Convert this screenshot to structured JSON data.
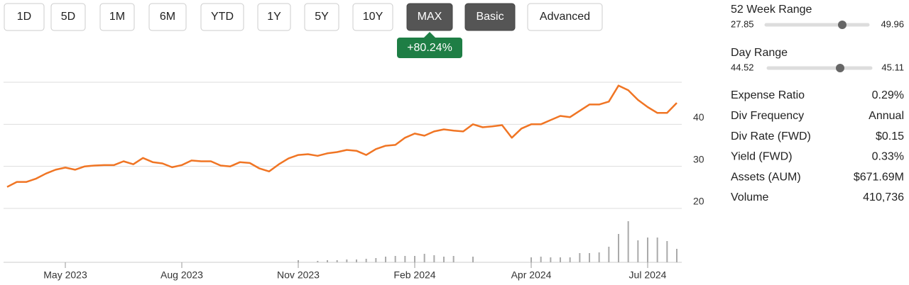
{
  "buttons": [
    {
      "label": "1D",
      "active": false
    },
    {
      "label": "5D",
      "active": false
    },
    {
      "label": "1M",
      "active": false
    },
    {
      "label": "6M",
      "active": false
    },
    {
      "label": "YTD",
      "active": false
    },
    {
      "label": "1Y",
      "active": false
    },
    {
      "label": "5Y",
      "active": false
    },
    {
      "label": "10Y",
      "active": false
    },
    {
      "label": "MAX",
      "active": true
    },
    {
      "label": "Basic",
      "active": true
    },
    {
      "label": "Advanced",
      "active": false
    }
  ],
  "badge": "+80.24%",
  "chart_data": {
    "type": "line",
    "x": [
      0,
      1,
      2,
      3,
      4,
      5,
      6,
      7,
      8,
      9,
      10,
      11,
      12,
      13,
      14,
      15,
      16,
      17,
      18,
      19,
      20,
      21,
      22,
      23,
      24,
      25,
      26,
      27,
      28,
      29,
      30,
      31,
      32,
      33,
      34,
      35,
      36,
      37,
      38,
      39,
      40,
      41,
      42,
      43,
      44,
      45,
      46,
      47,
      48,
      49,
      50,
      51,
      52,
      53,
      54,
      55,
      56,
      57,
      58,
      59,
      60,
      61,
      62,
      63,
      64,
      65,
      66,
      67,
      68,
      69
    ],
    "series": [
      {
        "name": "Price",
        "color": "#f07524",
        "values": [
          25.1,
          26.3,
          26.3,
          27.1,
          28.3,
          29.2,
          29.7,
          29.2,
          30.0,
          30.2,
          30.3,
          30.3,
          31.2,
          30.5,
          32.0,
          31.0,
          30.7,
          29.8,
          30.3,
          31.4,
          31.2,
          31.2,
          30.2,
          30.0,
          31.0,
          30.8,
          29.5,
          28.8,
          30.5,
          31.9,
          32.7,
          32.9,
          32.5,
          33.1,
          33.4,
          33.9,
          33.7,
          32.7,
          34.1,
          34.9,
          35.1,
          36.8,
          37.8,
          37.3,
          38.3,
          38.8,
          38.5,
          38.3,
          40.0,
          39.3,
          39.5,
          39.8,
          36.8,
          39.0,
          40.0,
          40.0,
          41.0,
          42.0,
          41.7,
          43.2,
          44.7,
          44.7,
          45.4,
          49.2,
          48.1,
          45.8,
          44.1,
          42.7,
          42.7,
          45.1
        ]
      },
      {
        "name": "Volume",
        "color": "#aaaaaa",
        "axis": "y2",
        "values": [
          null,
          null,
          null,
          null,
          null,
          null,
          null,
          null,
          null,
          null,
          null,
          null,
          null,
          null,
          null,
          null,
          null,
          null,
          null,
          null,
          null,
          null,
          null,
          null,
          null,
          null,
          null,
          null,
          null,
          null,
          3,
          null,
          2,
          3,
          3,
          4,
          4,
          5,
          6,
          8,
          9,
          9,
          9,
          12,
          10,
          8,
          9,
          null,
          8,
          null,
          null,
          null,
          null,
          null,
          7,
          8,
          7,
          7,
          7,
          13,
          13,
          14,
          22,
          40,
          58,
          31,
          35,
          35,
          30,
          19
        ]
      }
    ],
    "xlim": [
      0,
      69
    ],
    "xticks": [
      {
        "value": 6,
        "label": "May 2023"
      },
      {
        "value": 18,
        "label": "Aug 2023"
      },
      {
        "value": 30,
        "label": "Nov 2023"
      },
      {
        "value": 42,
        "label": "Feb 2024"
      },
      {
        "value": 54,
        "label": "Apr 2024"
      },
      {
        "value": 66,
        "label": "Jul 2024"
      }
    ],
    "ylim": [
      20,
      50
    ],
    "yticks": [
      20,
      30,
      40
    ],
    "y2lim": [
      0,
      60
    ],
    "grid": true
  },
  "ranges": [
    {
      "label": "52 Week Range",
      "low": "27.85",
      "high": "49.96"
    },
    {
      "label": "Day Range",
      "low": "44.52",
      "high": "45.11"
    }
  ],
  "stats": [
    [
      "Expense Ratio",
      "0.29%"
    ],
    [
      "Div Frequency",
      "Annual"
    ],
    [
      "Div Rate (FWD)",
      "$0.15"
    ],
    [
      "Yield (FWD)",
      "0.33%"
    ],
    [
      "Assets (AUM)",
      "$671.69M"
    ],
    [
      "Volume",
      "410,736"
    ]
  ]
}
